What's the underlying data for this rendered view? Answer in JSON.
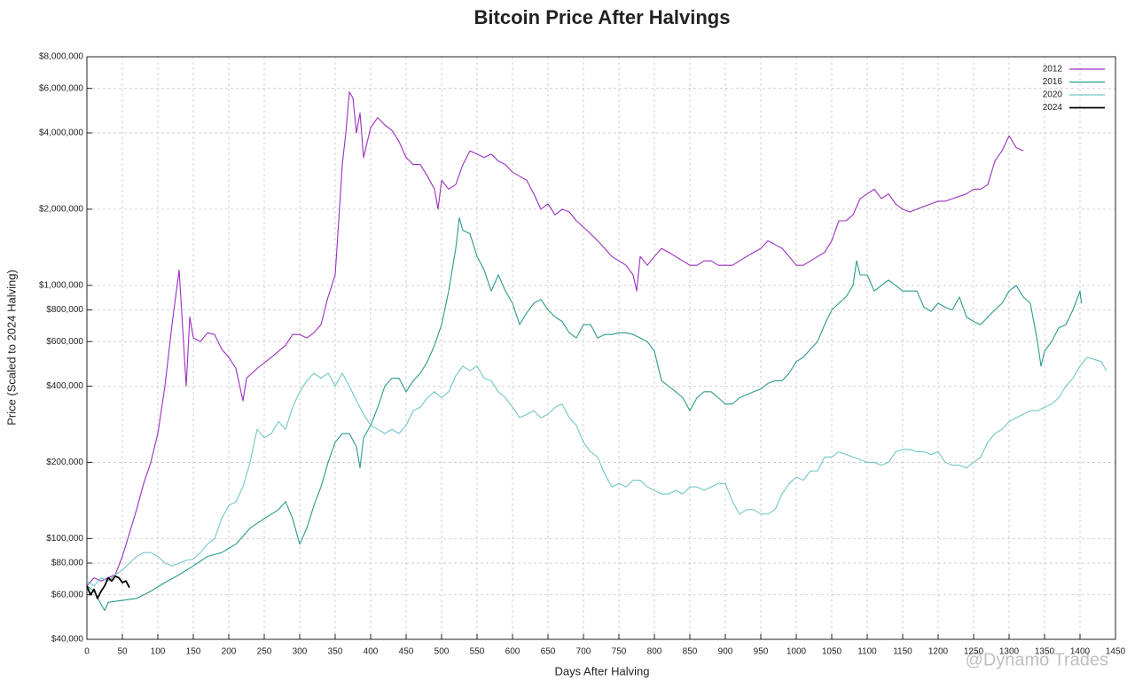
{
  "chart_data": {
    "type": "line",
    "title": "Bitcoin Price After Halvings",
    "xlabel": "Days After Halving",
    "ylabel": "Price (Scaled to 2024 Halving)",
    "watermark": "@Dynamo Trades",
    "ylog": true,
    "grid": true,
    "legend": "top-right",
    "xlim": [
      0,
      1450
    ],
    "xticks": [
      0,
      50,
      100,
      150,
      200,
      250,
      300,
      350,
      400,
      450,
      500,
      550,
      600,
      650,
      700,
      750,
      800,
      850,
      900,
      950,
      1000,
      1050,
      1100,
      1150,
      1200,
      1250,
      1300,
      1350,
      1400,
      1450
    ],
    "ylim": [
      40000,
      8000000
    ],
    "yticks": [
      {
        "value": 40000,
        "label": "$40,000"
      },
      {
        "value": 60000,
        "label": "$60,000"
      },
      {
        "value": 80000,
        "label": "$80,000"
      },
      {
        "value": 100000,
        "label": "$100,000"
      },
      {
        "value": 200000,
        "label": "$200,000"
      },
      {
        "value": 400000,
        "label": "$400,000"
      },
      {
        "value": 600000,
        "label": "$600,000"
      },
      {
        "value": 800000,
        "label": "$800,000"
      },
      {
        "value": 1000000,
        "label": "$1,000,000"
      },
      {
        "value": 2000000,
        "label": "$2,000,000"
      },
      {
        "value": 4000000,
        "label": "$4,000,000"
      },
      {
        "value": 6000000,
        "label": "$6,000,000"
      },
      {
        "value": 8000000,
        "label": "$8,000,000"
      }
    ],
    "series": [
      {
        "name": "2012",
        "color": "#9a2fc0",
        "x": [
          0,
          10,
          20,
          30,
          40,
          50,
          60,
          70,
          80,
          90,
          100,
          110,
          120,
          130,
          140,
          145,
          150,
          160,
          170,
          180,
          190,
          200,
          210,
          220,
          225,
          240,
          260,
          280,
          290,
          300,
          310,
          320,
          330,
          340,
          350,
          355,
          360,
          365,
          370,
          375,
          380,
          385,
          390,
          400,
          410,
          420,
          430,
          440,
          450,
          460,
          470,
          480,
          490,
          495,
          500,
          510,
          520,
          530,
          540,
          550,
          560,
          570,
          580,
          590,
          600,
          610,
          620,
          630,
          640,
          650,
          660,
          670,
          680,
          690,
          700,
          710,
          720,
          730,
          740,
          750,
          760,
          770,
          775,
          780,
          790,
          800,
          810,
          820,
          830,
          840,
          850,
          860,
          870,
          880,
          890,
          900,
          910,
          920,
          930,
          940,
          950,
          960,
          970,
          980,
          990,
          1000,
          1010,
          1020,
          1030,
          1040,
          1050,
          1060,
          1070,
          1080,
          1090,
          1100,
          1110,
          1120,
          1130,
          1140,
          1150,
          1160,
          1170,
          1180,
          1190,
          1200,
          1210,
          1220,
          1230,
          1240,
          1250,
          1260,
          1270,
          1280,
          1290,
          1300,
          1310,
          1320
        ],
        "values": [
          65000,
          70000,
          68000,
          70000,
          72000,
          85000,
          105000,
          130000,
          165000,
          200000,
          260000,
          400000,
          700000,
          1150000,
          400000,
          750000,
          620000,
          600000,
          650000,
          640000,
          560000,
          520000,
          470000,
          350000,
          430000,
          470000,
          520000,
          580000,
          640000,
          640000,
          620000,
          650000,
          700000,
          900000,
          1100000,
          1800000,
          3000000,
          4000000,
          5800000,
          5500000,
          4000000,
          4800000,
          3200000,
          4200000,
          4600000,
          4300000,
          4100000,
          3700000,
          3200000,
          3000000,
          3000000,
          2700000,
          2400000,
          2000000,
          2600000,
          2400000,
          2500000,
          3000000,
          3400000,
          3300000,
          3200000,
          3300000,
          3100000,
          3000000,
          2800000,
          2700000,
          2600000,
          2300000,
          2000000,
          2100000,
          1900000,
          2000000,
          1950000,
          1800000,
          1700000,
          1600000,
          1500000,
          1400000,
          1300000,
          1250000,
          1200000,
          1100000,
          950000,
          1300000,
          1200000,
          1300000,
          1400000,
          1350000,
          1300000,
          1250000,
          1200000,
          1200000,
          1250000,
          1250000,
          1200000,
          1200000,
          1200000,
          1250000,
          1300000,
          1350000,
          1400000,
          1500000,
          1450000,
          1400000,
          1300000,
          1200000,
          1200000,
          1250000,
          1300000,
          1350000,
          1500000,
          1800000,
          1800000,
          1900000,
          2200000,
          2300000,
          2400000,
          2200000,
          2300000,
          2100000,
          2000000,
          1950000,
          2000000,
          2050000,
          2100000,
          2150000,
          2150000,
          2200000,
          2250000,
          2300000,
          2400000,
          2400000,
          2500000,
          3100000,
          3400000,
          3900000,
          3500000,
          3400000
        ]
      },
      {
        "name": "2016",
        "color": "#2a9a8c",
        "x": [
          0,
          10,
          20,
          25,
          30,
          50,
          70,
          90,
          110,
          130,
          150,
          170,
          190,
          210,
          230,
          250,
          270,
          280,
          290,
          300,
          310,
          320,
          330,
          340,
          350,
          360,
          370,
          380,
          385,
          390,
          400,
          410,
          420,
          430,
          440,
          450,
          460,
          470,
          480,
          490,
          500,
          510,
          520,
          525,
          530,
          540,
          550,
          560,
          570,
          580,
          590,
          600,
          610,
          620,
          630,
          640,
          650,
          660,
          670,
          680,
          690,
          700,
          710,
          720,
          730,
          740,
          750,
          760,
          770,
          780,
          790,
          800,
          810,
          820,
          830,
          840,
          850,
          860,
          870,
          880,
          890,
          900,
          910,
          920,
          930,
          940,
          950,
          960,
          970,
          980,
          990,
          1000,
          1010,
          1020,
          1030,
          1040,
          1050,
          1060,
          1070,
          1080,
          1085,
          1090,
          1100,
          1110,
          1120,
          1130,
          1140,
          1150,
          1160,
          1170,
          1180,
          1190,
          1200,
          1210,
          1220,
          1230,
          1240,
          1250,
          1260,
          1270,
          1280,
          1290,
          1300,
          1310,
          1320,
          1330,
          1340,
          1345,
          1350,
          1360,
          1370,
          1380,
          1390,
          1400,
          1402
        ],
        "values": [
          65000,
          62000,
          55000,
          52000,
          56000,
          57000,
          58000,
          62000,
          67000,
          72000,
          78000,
          85000,
          88000,
          95000,
          110000,
          120000,
          130000,
          140000,
          120000,
          95000,
          110000,
          135000,
          160000,
          200000,
          240000,
          260000,
          260000,
          230000,
          190000,
          250000,
          280000,
          330000,
          400000,
          430000,
          430000,
          380000,
          420000,
          450000,
          500000,
          580000,
          700000,
          950000,
          1400000,
          1850000,
          1650000,
          1600000,
          1300000,
          1150000,
          950000,
          1100000,
          950000,
          850000,
          700000,
          780000,
          850000,
          880000,
          800000,
          750000,
          720000,
          650000,
          620000,
          700000,
          700000,
          620000,
          640000,
          640000,
          650000,
          650000,
          640000,
          620000,
          600000,
          550000,
          420000,
          400000,
          380000,
          360000,
          320000,
          360000,
          380000,
          380000,
          360000,
          340000,
          340000,
          360000,
          370000,
          380000,
          390000,
          410000,
          420000,
          420000,
          450000,
          500000,
          520000,
          560000,
          600000,
          700000,
          800000,
          850000,
          900000,
          1000000,
          1250000,
          1100000,
          1100000,
          950000,
          1000000,
          1050000,
          1000000,
          950000,
          950000,
          950000,
          820000,
          790000,
          850000,
          820000,
          800000,
          900000,
          750000,
          720000,
          700000,
          750000,
          800000,
          850000,
          950000,
          1000000,
          900000,
          850000,
          600000,
          480000,
          550000,
          600000,
          680000,
          700000,
          800000,
          950000,
          850000
        ]
      },
      {
        "name": "2020",
        "color": "#72c6c6",
        "x": [
          0,
          10,
          20,
          30,
          40,
          50,
          60,
          70,
          80,
          90,
          100,
          110,
          120,
          130,
          140,
          150,
          160,
          170,
          180,
          190,
          200,
          210,
          220,
          230,
          240,
          250,
          260,
          270,
          280,
          290,
          300,
          310,
          320,
          330,
          340,
          350,
          360,
          370,
          380,
          390,
          400,
          410,
          420,
          430,
          440,
          450,
          460,
          470,
          480,
          490,
          500,
          510,
          520,
          530,
          540,
          550,
          560,
          570,
          580,
          590,
          600,
          610,
          620,
          630,
          640,
          650,
          660,
          670,
          680,
          690,
          700,
          710,
          720,
          730,
          740,
          750,
          760,
          770,
          780,
          790,
          800,
          810,
          820,
          830,
          840,
          850,
          860,
          870,
          880,
          890,
          900,
          910,
          920,
          930,
          940,
          950,
          960,
          970,
          980,
          990,
          1000,
          1010,
          1020,
          1030,
          1040,
          1050,
          1060,
          1070,
          1080,
          1090,
          1100,
          1110,
          1120,
          1130,
          1140,
          1150,
          1160,
          1170,
          1180,
          1190,
          1200,
          1210,
          1220,
          1230,
          1240,
          1250,
          1260,
          1270,
          1280,
          1290,
          1300,
          1310,
          1320,
          1330,
          1340,
          1350,
          1360,
          1370,
          1380,
          1390,
          1400,
          1410,
          1420,
          1430,
          1437
        ],
        "values": [
          68000,
          65000,
          70000,
          68000,
          72000,
          75000,
          80000,
          85000,
          88000,
          88000,
          85000,
          80000,
          78000,
          80000,
          82000,
          83000,
          88000,
          95000,
          100000,
          120000,
          135000,
          140000,
          160000,
          200000,
          270000,
          250000,
          260000,
          290000,
          270000,
          330000,
          380000,
          420000,
          450000,
          430000,
          450000,
          400000,
          450000,
          400000,
          350000,
          310000,
          280000,
          270000,
          260000,
          270000,
          260000,
          280000,
          320000,
          330000,
          360000,
          380000,
          360000,
          380000,
          440000,
          480000,
          460000,
          480000,
          430000,
          420000,
          380000,
          360000,
          330000,
          300000,
          310000,
          320000,
          300000,
          310000,
          330000,
          340000,
          300000,
          280000,
          240000,
          220000,
          210000,
          180000,
          160000,
          165000,
          160000,
          170000,
          170000,
          160000,
          155000,
          150000,
          150000,
          155000,
          150000,
          160000,
          160000,
          155000,
          160000,
          165000,
          165000,
          140000,
          125000,
          130000,
          130000,
          125000,
          125000,
          130000,
          150000,
          165000,
          175000,
          170000,
          185000,
          185000,
          210000,
          210000,
          220000,
          215000,
          210000,
          205000,
          200000,
          200000,
          195000,
          200000,
          220000,
          225000,
          225000,
          220000,
          220000,
          215000,
          220000,
          200000,
          195000,
          195000,
          190000,
          200000,
          210000,
          240000,
          260000,
          270000,
          290000,
          300000,
          310000,
          320000,
          320000,
          330000,
          340000,
          360000,
          400000,
          430000,
          480000,
          520000,
          510000,
          500000,
          460000
        ]
      },
      {
        "name": "2024",
        "color": "#000000",
        "x": [
          0,
          5,
          10,
          15,
          20,
          25,
          30,
          35,
          40,
          45,
          50,
          55,
          60
        ],
        "values": [
          65000,
          60000,
          63000,
          58000,
          62000,
          65000,
          70000,
          68000,
          71000,
          70000,
          67000,
          68000,
          64000
        ]
      }
    ]
  }
}
